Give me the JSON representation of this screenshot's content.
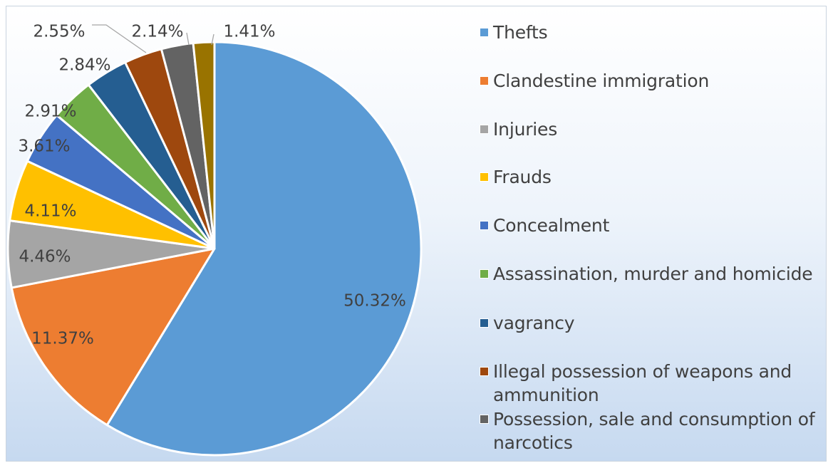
{
  "chart_data": {
    "type": "pie",
    "title": "",
    "slices": [
      {
        "label": "Thefts",
        "value": 50.32,
        "display": "50.32%",
        "color": "#5b9bd5"
      },
      {
        "label": "Clandestine immigration",
        "value": 11.37,
        "display": "11.37%",
        "color": "#ed7d31"
      },
      {
        "label": "Injuries",
        "value": 4.46,
        "display": "4.46%",
        "color": "#a5a5a5"
      },
      {
        "label": "Frauds",
        "value": 4.11,
        "display": "4.11%",
        "color": "#ffc000"
      },
      {
        "label": "Concealment",
        "value": 3.61,
        "display": "3.61%",
        "color": "#4472c4"
      },
      {
        "label": "Assassination, murder and homicide",
        "value": 2.91,
        "display": "2.91%",
        "color": "#70ad47"
      },
      {
        "label": "vagrancy",
        "value": 2.84,
        "display": "2.84%",
        "color": "#255e91"
      },
      {
        "label": "Illegal possession of weapons and ammunition",
        "value": 2.55,
        "display": "2.55%",
        "color": "#9e480e"
      },
      {
        "label": "Possession, sale and consumption of narcotics",
        "value": 2.14,
        "display": "2.14%",
        "color": "#636363"
      },
      {
        "label": "",
        "value": 1.41,
        "display": "1.41%",
        "color": "#997300"
      }
    ],
    "legend_position": "right",
    "start_angle": "12 o'clock",
    "direction": "clockwise"
  }
}
